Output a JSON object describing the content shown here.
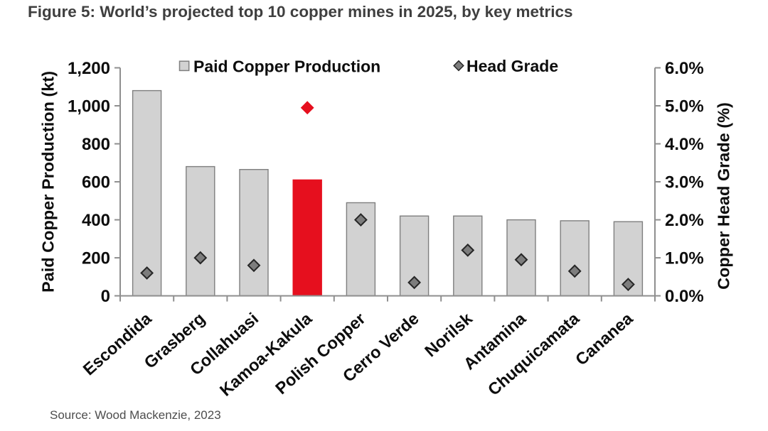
{
  "figure_title": "Figure 5: World’s projected top 10 copper mines in 2025, by key metrics",
  "source_note": "Source: Wood Mackenzie, 2023",
  "colors": {
    "bar_fill": "#d2d2d2",
    "bar_border": "#7f7f7f",
    "highlight_red": "#e60f1e",
    "diamond_fill": "#7d7d7d",
    "diamond_border": "#262626",
    "axis_line": "#8f8f8f",
    "chart_text": "#0d0d0d",
    "title_text": "#3f3f3f",
    "source_text": "#4d4d4d"
  },
  "chart_data": {
    "type": "combo",
    "title": "Figure 5: World’s projected top 10 copper mines in 2025, by key metrics",
    "categories": [
      "Escondida",
      "Grasberg",
      "Collahuasi",
      "Kamoa-Kakula",
      "Polish Copper",
      "Cerro Verde",
      "Norilsk",
      "Antamina",
      "Chuquicamata",
      "Cananea"
    ],
    "series": [
      {
        "name": "Paid Copper Production",
        "type": "bar",
        "axis": "left",
        "values": [
          1080,
          680,
          665,
          610,
          490,
          420,
          420,
          400,
          395,
          390
        ],
        "highlight_category": "Kamoa-Kakula"
      },
      {
        "name": "Head Grade",
        "type": "scatter",
        "marker": "diamond",
        "axis": "right",
        "values": [
          0.6,
          1.0,
          0.8,
          4.95,
          2.0,
          0.35,
          1.2,
          0.95,
          0.65,
          0.3
        ],
        "highlight_category": "Kamoa-Kakula"
      }
    ],
    "left_axis": {
      "title": "Paid Copper Production (kt)",
      "min": 0,
      "max": 1200,
      "step": 200,
      "tick_labels": [
        "0",
        "200",
        "400",
        "600",
        "800",
        "1,000",
        "1,200"
      ]
    },
    "right_axis": {
      "title": "Copper Head Grade (%)",
      "min": 0,
      "max": 6,
      "step": 1,
      "tick_labels": [
        "0.0%",
        "1.0%",
        "2.0%",
        "3.0%",
        "4.0%",
        "5.0%",
        "6.0%"
      ]
    },
    "legend": [
      "Paid Copper Production",
      "Head Grade"
    ],
    "legend_position": "top-inside",
    "grid": false,
    "xlabel": "",
    "ylabel": "Paid Copper Production (kt)",
    "y2label": "Copper Head Grade (%)"
  }
}
